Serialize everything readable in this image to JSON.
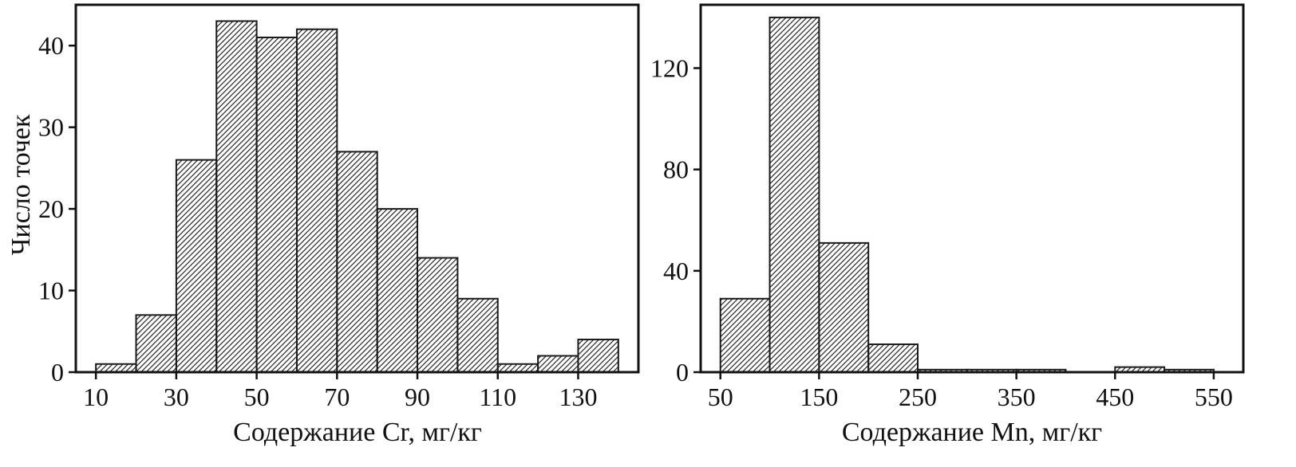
{
  "figure": {
    "background": "#ffffff",
    "ink_color": "#111111",
    "bar_style": "diagonal-hatch"
  },
  "chart_data": [
    {
      "type": "bar",
      "subtype": "histogram",
      "title": "",
      "xlabel": "Содержание Cr, мг/кг",
      "ylabel": "Число точек",
      "bin_start": 10,
      "bin_width": 10,
      "values": [
        1,
        7,
        26,
        43,
        41,
        42,
        27,
        20,
        14,
        9,
        1,
        2,
        4
      ],
      "x_ticks": [
        10,
        30,
        50,
        70,
        90,
        110,
        130
      ],
      "y_ticks": [
        0,
        10,
        20,
        30,
        40
      ],
      "xlim": [
        5,
        145
      ],
      "ylim": [
        0,
        45
      ],
      "grid": false,
      "legend": "none",
      "bar_fill": "hatch",
      "bar_stroke": "#1a1a1a"
    },
    {
      "type": "bar",
      "subtype": "histogram",
      "title": "",
      "xlabel": "Содержание Mn, мг/кг",
      "ylabel": "",
      "bin_start": 50,
      "bin_width": 50,
      "values": [
        29,
        140,
        51,
        11,
        1,
        1,
        1,
        0,
        2,
        1
      ],
      "x_ticks": [
        50,
        150,
        250,
        350,
        450,
        550
      ],
      "y_ticks": [
        0,
        40,
        80,
        120
      ],
      "xlim": [
        30,
        580
      ],
      "ylim": [
        0,
        145
      ],
      "grid": false,
      "legend": "none",
      "bar_fill": "hatch",
      "bar_stroke": "#1a1a1a"
    }
  ]
}
